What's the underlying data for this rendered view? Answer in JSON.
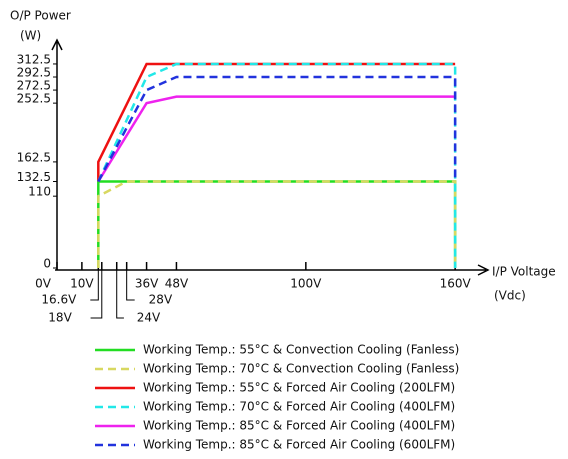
{
  "chart_data": {
    "type": "line",
    "y_label_lines": [
      "O/P Power",
      "(W)"
    ],
    "x_label_lines": [
      "I/P Voltage",
      "(Vdc)"
    ],
    "xlim": [
      0,
      172
    ],
    "ylim": [
      0,
      340
    ],
    "xticks": [
      {
        "value": 0,
        "label": "0V"
      },
      {
        "value": 10,
        "label": "10V"
      },
      {
        "value": 16.6,
        "label": "16.6V"
      },
      {
        "value": 18,
        "label": "18V"
      },
      {
        "value": 24,
        "label": "24V"
      },
      {
        "value": 28,
        "label": "28V"
      },
      {
        "value": 36,
        "label": "36V"
      },
      {
        "value": 48,
        "label": "48V"
      },
      {
        "value": 100,
        "label": "100V"
      },
      {
        "value": 160,
        "label": "160V"
      }
    ],
    "yticks": [
      0,
      110,
      132.5,
      162.5,
      252.5,
      272.5,
      292.5,
      312.5
    ],
    "series": [
      {
        "name": "Working Temp.: 55°C & Convection Cooling (Fanless)",
        "color": "#22dd22",
        "style": "solid",
        "x": [
          16.6,
          16.6,
          160,
          160
        ],
        "values": [
          0,
          132.5,
          132.5,
          0
        ]
      },
      {
        "name": "Working Temp.: 70°C & Convection Cooling (Fanless)",
        "color": "#d8d860",
        "style": "dashed",
        "x": [
          16.6,
          16.6,
          28,
          160,
          160
        ],
        "values": [
          0,
          110,
          132.5,
          132.5,
          0
        ]
      },
      {
        "name": "Working Temp.: 55°C & Forced Air Cooling (200LFM)",
        "color": "#ee1111",
        "style": "solid",
        "x": [
          16.6,
          16.6,
          36,
          160
        ],
        "values": [
          132.5,
          162.5,
          312.5,
          312.5
        ]
      },
      {
        "name": "Working Temp.: 70°C & Forced Air Cooling (400LFM)",
        "color": "#22e8e8",
        "style": "dashed",
        "x": [
          16.6,
          36,
          48,
          160,
          160
        ],
        "values": [
          132.5,
          292.5,
          312.5,
          312.5,
          0
        ]
      },
      {
        "name": "Working Temp.: 85°C & Forced Air Cooling (400LFM)",
        "color": "#ee22ee",
        "style": "solid",
        "x": [
          16.6,
          36,
          48,
          160
        ],
        "values": [
          132.5,
          252.5,
          262.5,
          262.5
        ]
      },
      {
        "name": "Working Temp.: 85°C & Forced Air Cooling (600LFM)",
        "color": "#2233dd",
        "style": "dashed",
        "x": [
          16.6,
          36,
          48,
          160,
          160
        ],
        "values": [
          132.5,
          272.5,
          292.5,
          292.5,
          132.5
        ]
      }
    ]
  }
}
